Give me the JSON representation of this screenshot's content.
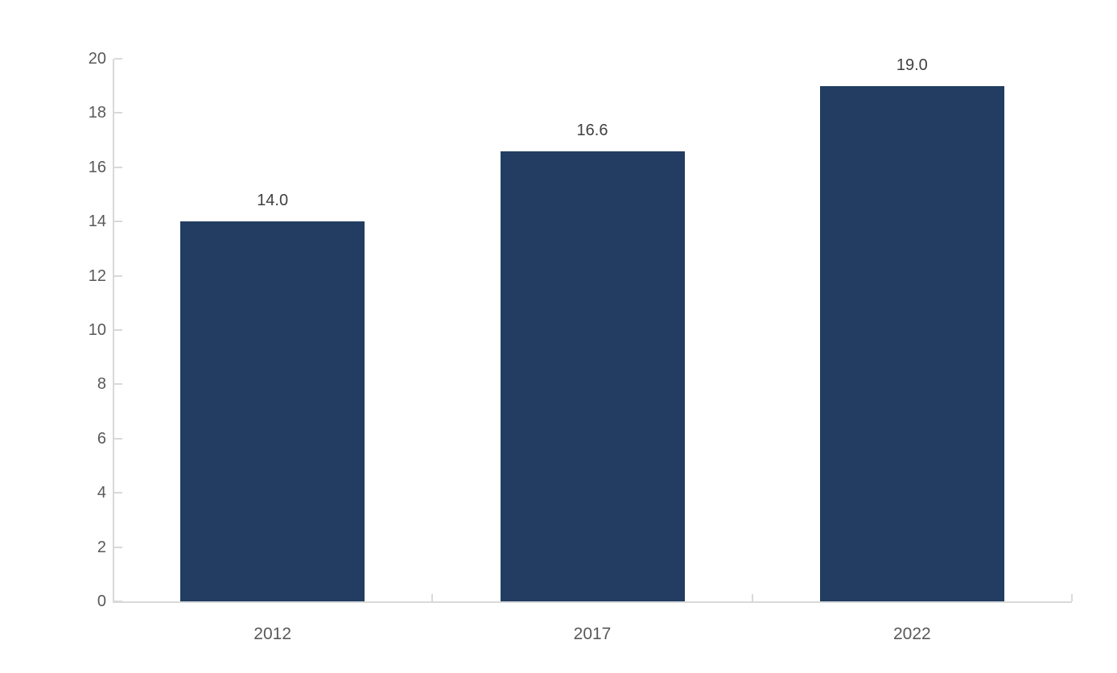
{
  "chart_data": {
    "type": "bar",
    "title": "",
    "xlabel": "",
    "ylabel": "",
    "categories": [
      "2012",
      "2017",
      "2022"
    ],
    "values": [
      14.0,
      16.6,
      19.0
    ],
    "value_labels": [
      "14.0",
      "16.6",
      "19.0"
    ],
    "ylim": [
      0,
      20
    ],
    "yticks": [
      0,
      2,
      4,
      6,
      8,
      10,
      12,
      14,
      16,
      18,
      20
    ],
    "ytick_labels": [
      "0",
      "2",
      "4",
      "6",
      "8",
      "10",
      "12",
      "14",
      "16",
      "18",
      "20"
    ],
    "grid": false,
    "legend": null,
    "colors": {
      "bar": "#223D61",
      "axis_line": "#D9D9D9",
      "tick_label": "#595959",
      "value_label": "#404040",
      "background": "#FFFFFF"
    }
  }
}
